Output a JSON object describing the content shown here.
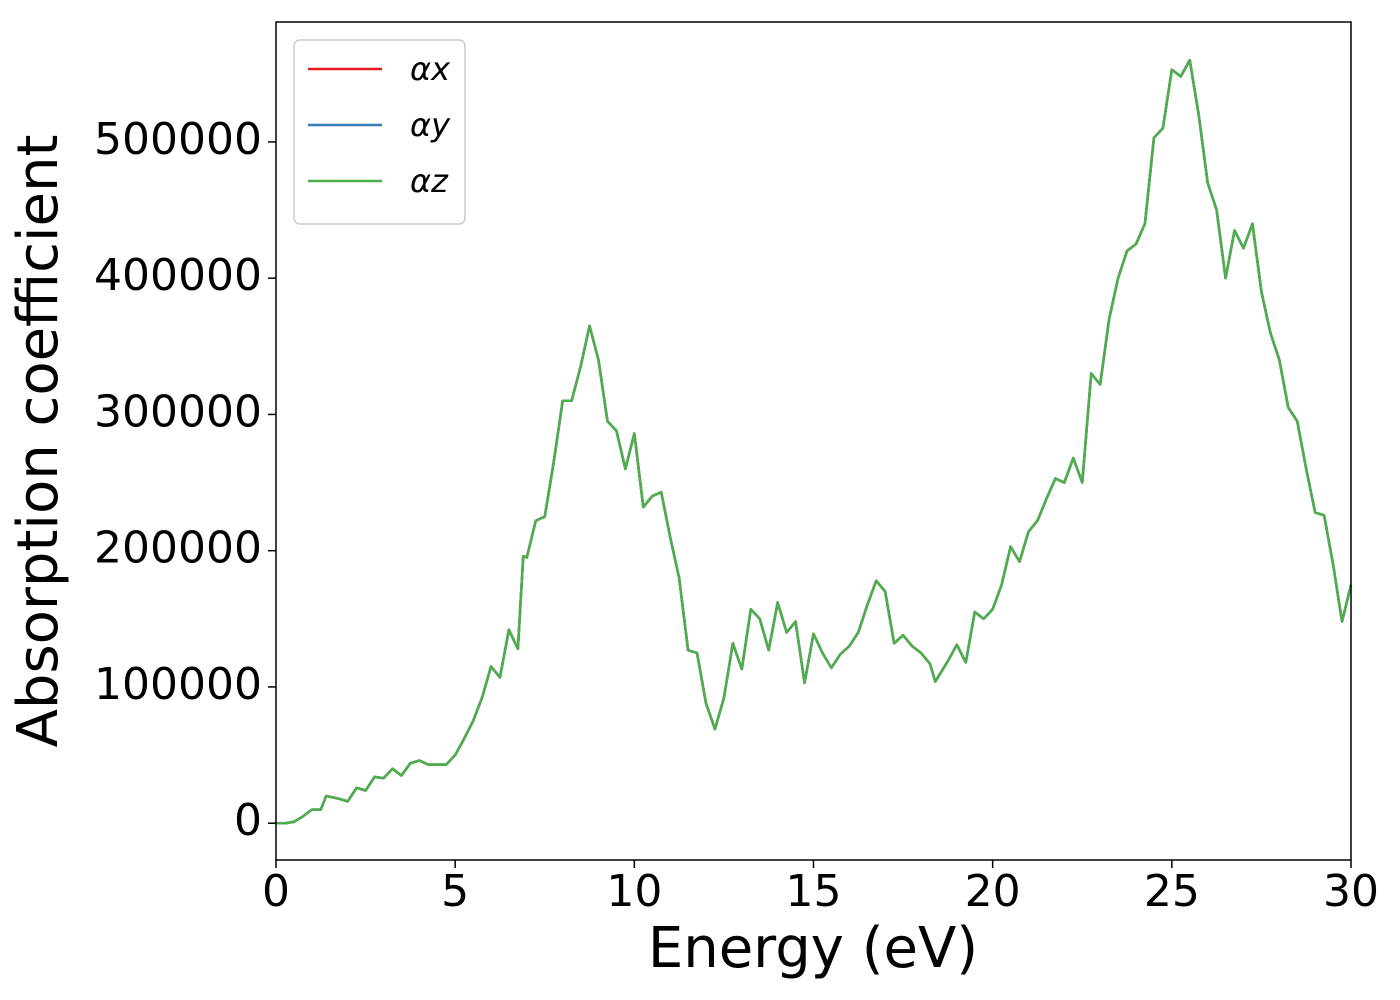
{
  "chart_data": {
    "type": "line",
    "xlabel": "Energy (eV)",
    "ylabel": "Absorption coefficient",
    "x": [
      0,
      0.25,
      0.5,
      0.75,
      1.0,
      1.25,
      1.4,
      1.75,
      2.0,
      2.25,
      2.5,
      2.75,
      3.0,
      3.25,
      3.5,
      3.75,
      4.0,
      4.25,
      4.5,
      4.75,
      5.0,
      5.25,
      5.5,
      5.75,
      6.0,
      6.25,
      6.5,
      6.75,
      6.9,
      7.0,
      7.25,
      7.5,
      7.75,
      8.0,
      8.25,
      8.5,
      8.75,
      9.0,
      9.25,
      9.5,
      9.75,
      10.0,
      10.25,
      10.5,
      10.75,
      11.0,
      11.25,
      11.5,
      11.75,
      12.0,
      12.25,
      12.5,
      12.75,
      13.0,
      13.25,
      13.5,
      13.75,
      14.0,
      14.25,
      14.5,
      14.75,
      15.0,
      15.25,
      15.5,
      15.75,
      16.0,
      16.25,
      16.5,
      16.75,
      17.0,
      17.25,
      17.5,
      17.75,
      18.0,
      18.25,
      18.4,
      18.75,
      19.0,
      19.25,
      19.5,
      19.75,
      20.0,
      20.25,
      20.5,
      20.75,
      21.0,
      21.25,
      21.5,
      21.75,
      22.0,
      22.25,
      22.5,
      22.75,
      23.0,
      23.25,
      23.5,
      23.75,
      24.0,
      24.25,
      24.5,
      24.75,
      25.0,
      25.25,
      25.5,
      25.75,
      26.0,
      26.25,
      26.5,
      26.75,
      27.0,
      27.25,
      27.5,
      27.75,
      28.0,
      28.25,
      28.5,
      28.75,
      29.0,
      29.25,
      29.5,
      29.75,
      30.0
    ],
    "series": [
      {
        "name": "αx",
        "color": "#e41a1c",
        "values": [
          0,
          0,
          1000,
          5000,
          10000,
          10000,
          20000,
          18000,
          16000,
          26000,
          24000,
          34000,
          33000,
          40000,
          35000,
          44000,
          46000,
          43000,
          43000,
          43000,
          50000,
          62000,
          75000,
          92000,
          115000,
          107000,
          142000,
          128000,
          196000,
          195000,
          222000,
          225000,
          265000,
          310000,
          310000,
          335000,
          365000,
          340000,
          295000,
          288000,
          260000,
          286000,
          232000,
          240000,
          243000,
          210000,
          180000,
          127000,
          125000,
          88000,
          69000,
          92000,
          132000,
          113000,
          157000,
          150000,
          127000,
          162000,
          140000,
          148000,
          103000,
          139000,
          125000,
          114000,
          124000,
          130000,
          140000,
          160000,
          178000,
          170000,
          132000,
          138000,
          130000,
          125000,
          117000,
          104000,
          119000,
          131000,
          118000,
          155000,
          150000,
          157000,
          175000,
          203000,
          192000,
          214000,
          222000,
          238000,
          253000,
          250000,
          268000,
          250000,
          330000,
          322000,
          370000,
          400000,
          420000,
          425000,
          440000,
          503000,
          510000,
          553000,
          548000,
          560000,
          520000,
          470000,
          450000,
          400000,
          435000,
          422000,
          440000,
          390000,
          360000,
          340000,
          305000,
          295000,
          260000,
          228000,
          226000,
          190000,
          148000,
          175000
        ]
      },
      {
        "name": "αy",
        "color": "#377eb8",
        "values": [
          0,
          0,
          1000,
          5000,
          10000,
          10000,
          20000,
          18000,
          16000,
          26000,
          24000,
          34000,
          33000,
          40000,
          35000,
          44000,
          46000,
          43000,
          43000,
          43000,
          50000,
          62000,
          75000,
          92000,
          115000,
          107000,
          142000,
          128000,
          196000,
          195000,
          222000,
          225000,
          265000,
          310000,
          310000,
          335000,
          365000,
          340000,
          295000,
          288000,
          260000,
          286000,
          232000,
          240000,
          243000,
          210000,
          180000,
          127000,
          125000,
          88000,
          69000,
          92000,
          132000,
          113000,
          157000,
          150000,
          127000,
          162000,
          140000,
          148000,
          103000,
          139000,
          125000,
          114000,
          124000,
          130000,
          140000,
          160000,
          178000,
          170000,
          132000,
          138000,
          130000,
          125000,
          117000,
          104000,
          119000,
          131000,
          118000,
          155000,
          150000,
          157000,
          175000,
          203000,
          192000,
          214000,
          222000,
          238000,
          253000,
          250000,
          268000,
          250000,
          330000,
          322000,
          370000,
          400000,
          420000,
          425000,
          440000,
          503000,
          510000,
          553000,
          548000,
          560000,
          520000,
          470000,
          450000,
          400000,
          435000,
          422000,
          440000,
          390000,
          360000,
          340000,
          305000,
          295000,
          260000,
          228000,
          226000,
          190000,
          148000,
          175000
        ]
      },
      {
        "name": "αz",
        "color": "#4daf4a",
        "values": [
          0,
          0,
          1000,
          5000,
          10000,
          10000,
          20000,
          18000,
          16000,
          26000,
          24000,
          34000,
          33000,
          40000,
          35000,
          44000,
          46000,
          43000,
          43000,
          43000,
          50000,
          62000,
          75000,
          92000,
          115000,
          107000,
          142000,
          128000,
          196000,
          195000,
          222000,
          225000,
          265000,
          310000,
          310000,
          335000,
          365000,
          340000,
          295000,
          288000,
          260000,
          286000,
          232000,
          240000,
          243000,
          210000,
          180000,
          127000,
          125000,
          88000,
          69000,
          92000,
          132000,
          113000,
          157000,
          150000,
          127000,
          162000,
          140000,
          148000,
          103000,
          139000,
          125000,
          114000,
          124000,
          130000,
          140000,
          160000,
          178000,
          170000,
          132000,
          138000,
          130000,
          125000,
          117000,
          104000,
          119000,
          131000,
          118000,
          155000,
          150000,
          157000,
          175000,
          203000,
          192000,
          214000,
          222000,
          238000,
          253000,
          250000,
          268000,
          250000,
          330000,
          322000,
          370000,
          400000,
          420000,
          425000,
          440000,
          503000,
          510000,
          553000,
          548000,
          560000,
          520000,
          470000,
          450000,
          400000,
          435000,
          422000,
          440000,
          390000,
          360000,
          340000,
          305000,
          295000,
          260000,
          228000,
          226000,
          190000,
          148000,
          175000
        ]
      }
    ],
    "xlim": [
      0,
      30
    ],
    "xticks": [
      0,
      5,
      10,
      15,
      20,
      25,
      30
    ],
    "ylim": [
      -27000,
      588000
    ],
    "yticks": [
      0,
      100000,
      200000,
      300000,
      400000,
      500000
    ],
    "legend": "upper left"
  }
}
